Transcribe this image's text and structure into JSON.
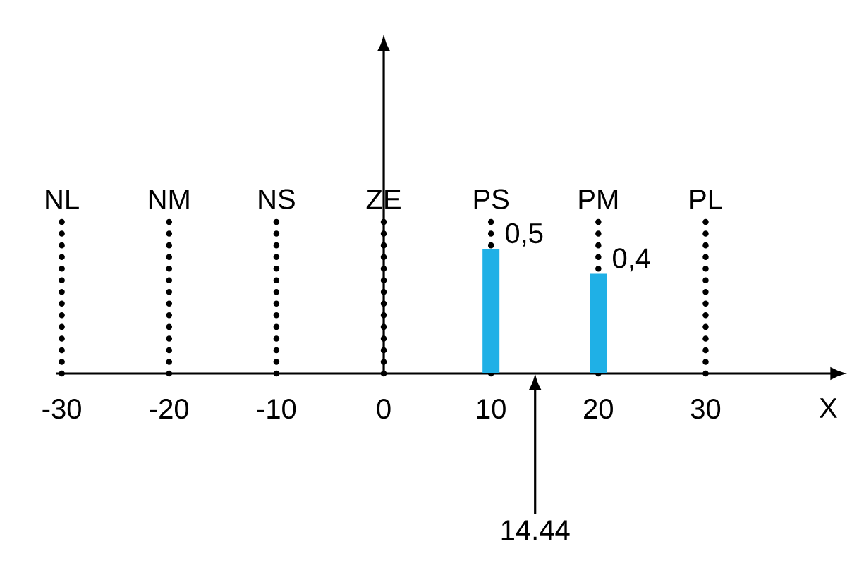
{
  "chart_data": {
    "type": "bar",
    "x": [
      10,
      20
    ],
    "values": [
      0.5,
      0.4
    ],
    "value_labels": [
      "0,5",
      "0,4"
    ],
    "color": "#1fb0e6",
    "xlabel": "X",
    "xlim": [
      -30.5,
      41.8
    ],
    "xticks": [
      -30,
      -20,
      -10,
      0,
      10,
      20,
      30
    ],
    "ylim": [
      0,
      1.3
    ],
    "tick_labels": "x",
    "ref_lines": [
      {
        "axis": "x",
        "value": -30,
        "label": "NL",
        "line_style": "dotted",
        "color": "#000000"
      },
      {
        "axis": "x",
        "value": -20,
        "label": "NM",
        "line_style": "dotted",
        "color": "#000000"
      },
      {
        "axis": "x",
        "value": -10,
        "label": "NS",
        "line_style": "dotted",
        "color": "#000000"
      },
      {
        "axis": "x",
        "value": 0,
        "label": "ZE",
        "line_style": "dotted",
        "color": "#000000"
      },
      {
        "axis": "x",
        "value": 10,
        "label": "PS",
        "line_style": "dotted",
        "color": "#000000"
      },
      {
        "axis": "x",
        "value": 20,
        "label": "PM",
        "line_style": "dotted",
        "color": "#000000"
      },
      {
        "axis": "x",
        "value": 30,
        "label": "PL",
        "line_style": "dotted",
        "color": "#000000"
      }
    ],
    "annotations": [
      "14.44"
    ]
  }
}
